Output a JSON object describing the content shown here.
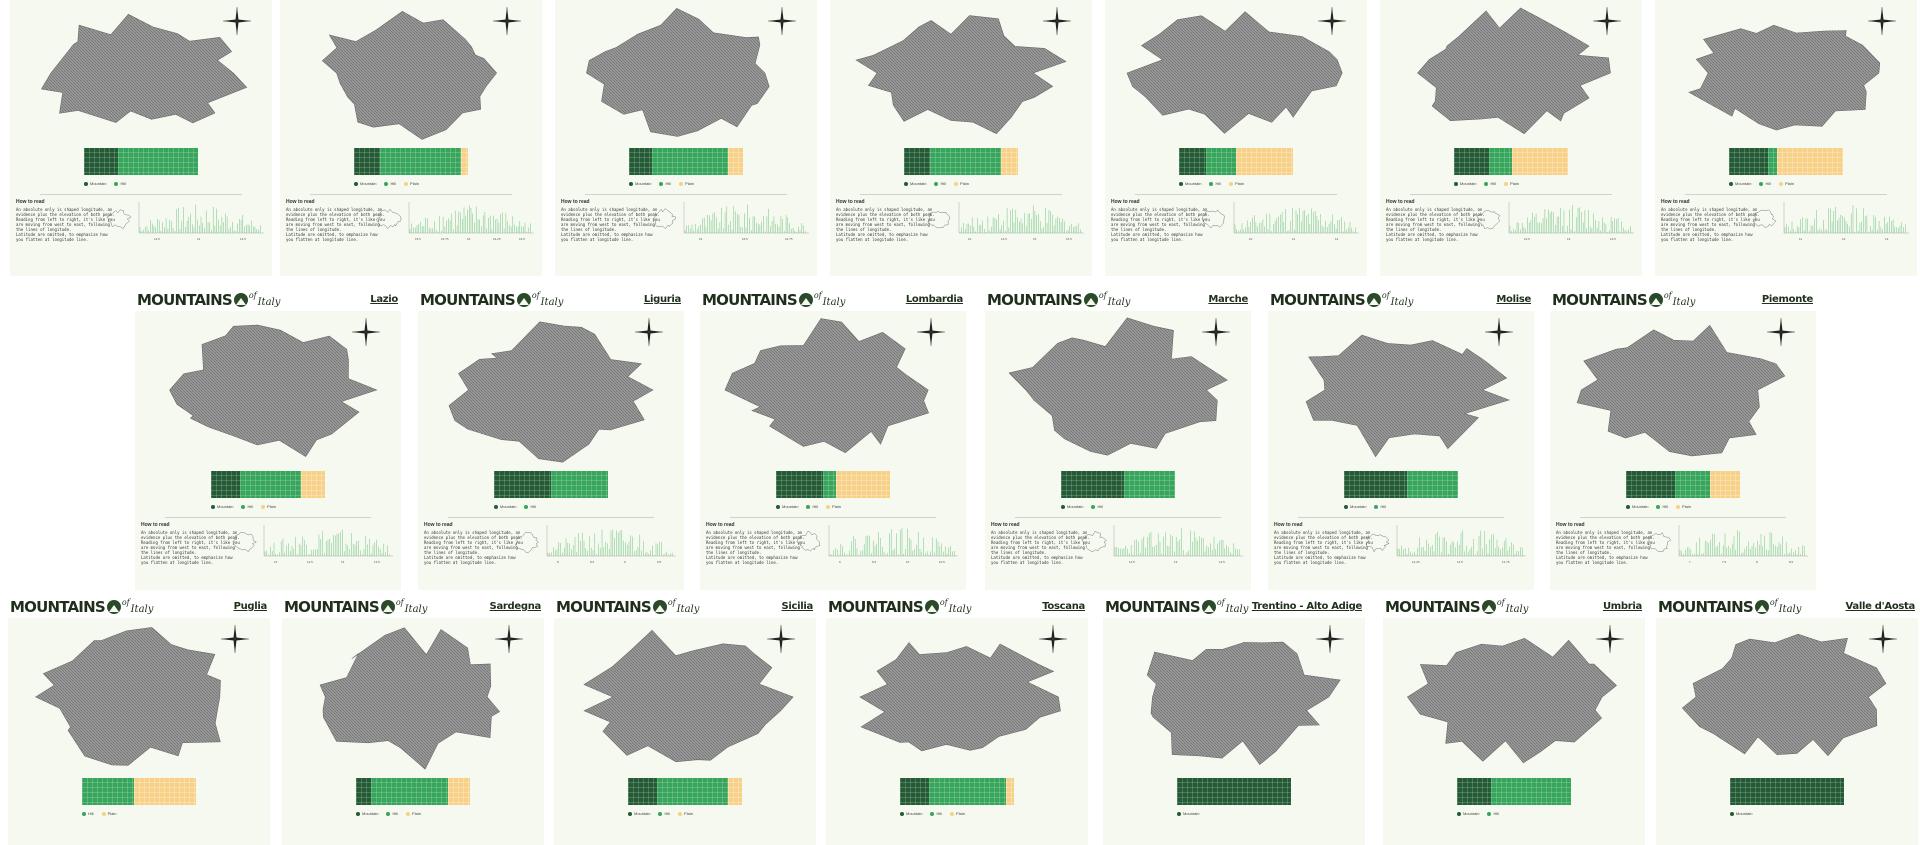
{
  "brand": {
    "word": "MOUNTAINS",
    "of": "of",
    "italy": "Italy"
  },
  "legend_labels": {
    "mountain": "Mountain",
    "hill": "Hill",
    "plain": "Plain"
  },
  "colors": {
    "mountain": "#245a36",
    "hill": "#38a55c",
    "plain": "#f8d188",
    "card_bg": "#f6f9ef",
    "relief": "#8e8e8e"
  },
  "how_to_read": {
    "title": "How to read",
    "lines": [
      "An absolute only is shaped longitude, an",
      "evidence plus the elevation of both peak.",
      "Reading from left to right, it's like you",
      "are moving from west to east, following",
      "the lines of longitude.",
      "Latitude are omitted, to emphasize how",
      "you flatten at longitude line."
    ]
  },
  "icons": {
    "compass": "compass-rose-icon",
    "logo": "mountain-logo-icon"
  },
  "rows": [
    {
      "cards": [
        {
          "name": "",
          "mix": [
            30,
            70,
            0
          ],
          "axis": [
            "13.5",
            "14",
            "14.5"
          ]
        },
        {
          "name": "",
          "mix": [
            23,
            71,
            6
          ],
          "axis": [
            "15.5",
            "15.75",
            "16",
            "16.25",
            "16.5"
          ]
        },
        {
          "name": "",
          "mix": [
            20,
            67,
            13
          ],
          "axis": [
            "16",
            "16.5",
            "16.75"
          ]
        },
        {
          "name": "",
          "mix": [
            23,
            62,
            15
          ],
          "axis": [
            "14",
            "14.5",
            "15",
            "15.5"
          ]
        },
        {
          "name": "",
          "mix": [
            24,
            26,
            50
          ],
          "axis": [
            "10",
            "11",
            "12"
          ]
        },
        {
          "name": "",
          "mix": [
            31,
            20,
            49
          ],
          "axis": [
            "12.5",
            "13",
            "13.5"
          ]
        },
        {
          "name": "",
          "mix": [
            34,
            8,
            58
          ],
          "axis": [
            "11",
            "12",
            "13"
          ]
        }
      ]
    },
    {
      "cards": [
        {
          "name": "Lazio",
          "mix": [
            25,
            54,
            21
          ],
          "axis": [
            "12",
            "12.5",
            "13",
            "13.5"
          ]
        },
        {
          "name": "Liguria",
          "mix": [
            50,
            50,
            0
          ],
          "axis": [
            "8",
            "8.5",
            "9",
            "9.5"
          ]
        },
        {
          "name": "Lombardia",
          "mix": [
            41,
            12,
            47
          ],
          "axis": [
            "9",
            "9.5",
            "10",
            "10.5"
          ]
        },
        {
          "name": "Marche",
          "mix": [
            55,
            45,
            0
          ],
          "axis": [
            "12.5",
            "13",
            "13.5"
          ]
        },
        {
          "name": "Molise",
          "mix": [
            55,
            45,
            0
          ],
          "axis": [
            "14.25",
            "14.5",
            "14.75"
          ]
        },
        {
          "name": "Piemonte",
          "mix": [
            43,
            31,
            26
          ],
          "axis": [
            "7",
            "7.5",
            "8",
            "8.5"
          ]
        }
      ]
    },
    {
      "cards": [
        {
          "name": "Puglia",
          "mix": [
            0,
            46,
            54
          ],
          "axis": []
        },
        {
          "name": "Sardegna",
          "mix": [
            13,
            68,
            19
          ],
          "axis": []
        },
        {
          "name": "Sicilia",
          "mix": [
            25,
            63,
            12
          ],
          "axis": []
        },
        {
          "name": "Toscana",
          "mix": [
            25,
            68,
            7
          ],
          "axis": []
        },
        {
          "name": "Trentino - Alto Adige",
          "mix": [
            100,
            0,
            0
          ],
          "axis": []
        },
        {
          "name": "Umbria",
          "mix": [
            30,
            70,
            0
          ],
          "axis": []
        },
        {
          "name": "Valle d'Aosta",
          "mix": [
            100,
            0,
            0
          ],
          "axis": []
        }
      ]
    }
  ]
}
